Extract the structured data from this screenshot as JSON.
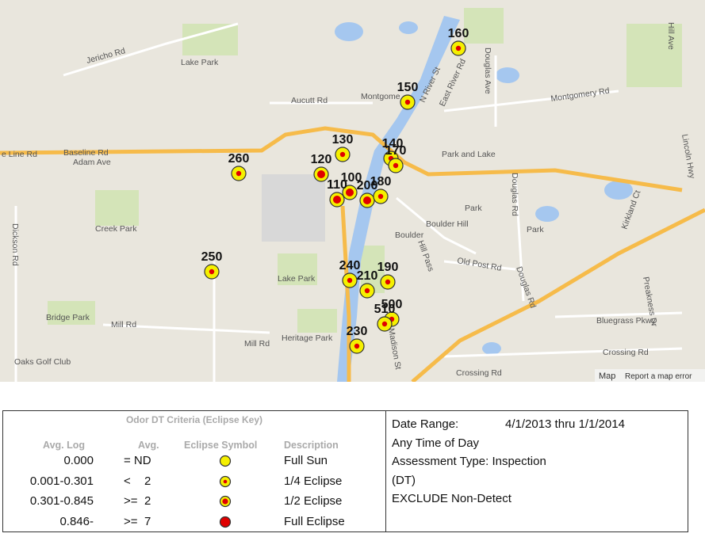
{
  "map": {
    "labels": [
      "Jericho Rd",
      "Lake Park",
      "Aucutt Rd",
      "Montgome",
      "N River St",
      "East River Rd",
      "Montgomery Rd",
      "Baseline Rd",
      "e Line Rd",
      "Adam Ave",
      "Park and Lake",
      "Douglas Ave",
      "Hill Ave",
      "Lincoln Hwy",
      "Douglas Rd",
      "Creek Park",
      "Park",
      "Park",
      "Boulder Hill",
      "Boulder",
      "Hill Pass",
      "Old Post Rd",
      "Douglas Rd",
      "Kirkland Ct",
      "Dickson Rd",
      "Lake Park",
      "Mill Rd",
      "Bridge Park",
      "Heritage Park",
      "Mill Rd",
      "Oaks Golf Club",
      "Crossing Rd",
      "Crossing Rd",
      "Bluegrass Pkwy",
      "Madison St",
      "Preakness Dr"
    ],
    "markers": [
      {
        "label": "160",
        "eclipse": "1/4 Eclipse"
      },
      {
        "label": "150",
        "eclipse": "1/4 Eclipse"
      },
      {
        "label": "130",
        "eclipse": "1/4 Eclipse"
      },
      {
        "label": "140",
        "eclipse": "1/4 Eclipse"
      },
      {
        "label": "170",
        "eclipse": "1/4 Eclipse"
      },
      {
        "label": "120",
        "eclipse": "1/2 Eclipse"
      },
      {
        "label": "260",
        "eclipse": "1/4 Eclipse"
      },
      {
        "label": "100",
        "eclipse": "1/2 Eclipse"
      },
      {
        "label": "110",
        "eclipse": "1/2 Eclipse"
      },
      {
        "label": "200",
        "eclipse": "1/2 Eclipse"
      },
      {
        "label": "180",
        "eclipse": "1/4 Eclipse"
      },
      {
        "label": "250",
        "eclipse": "1/4 Eclipse"
      },
      {
        "label": "240",
        "eclipse": "1/4 Eclipse"
      },
      {
        "label": "190",
        "eclipse": "1/4 Eclipse"
      },
      {
        "label": "210",
        "eclipse": "1/4 Eclipse"
      },
      {
        "label": "500",
        "eclipse": "1/4 Eclipse"
      },
      {
        "label": "510",
        "eclipse": "1/4 Eclipse"
      },
      {
        "label": "230",
        "eclipse": "1/4 Eclipse"
      }
    ],
    "attribution": "Map",
    "report": "Report a map error"
  },
  "legend": {
    "title": "Odor DT Criteria (Eclipse Key)",
    "headers": [
      "Avg. Log",
      "Avg.",
      "Eclipse Symbol",
      "Description"
    ],
    "rows": [
      {
        "log": "0.000",
        "op": "= ND",
        "avg": null,
        "description": "Full Sun"
      },
      {
        "log": "0.001-0.301",
        "op": "<",
        "avg": "2",
        "description": "1/4 Eclipse"
      },
      {
        "log": "0.301-0.845",
        "op": ">=",
        "avg": "2",
        "description": "1/2 Eclipse"
      },
      {
        "log": "0.846-",
        "op": ">=",
        "avg": "7",
        "description": "Full Eclipse"
      }
    ]
  },
  "info": {
    "date_label": "Date Range:",
    "date_value": "4/1/2013 thru 1/1/2014",
    "lines": [
      "Any Time of Day",
      "Assessment Type: Inspection",
      "(DT)",
      "EXCLUDE Non-Detect"
    ]
  }
}
